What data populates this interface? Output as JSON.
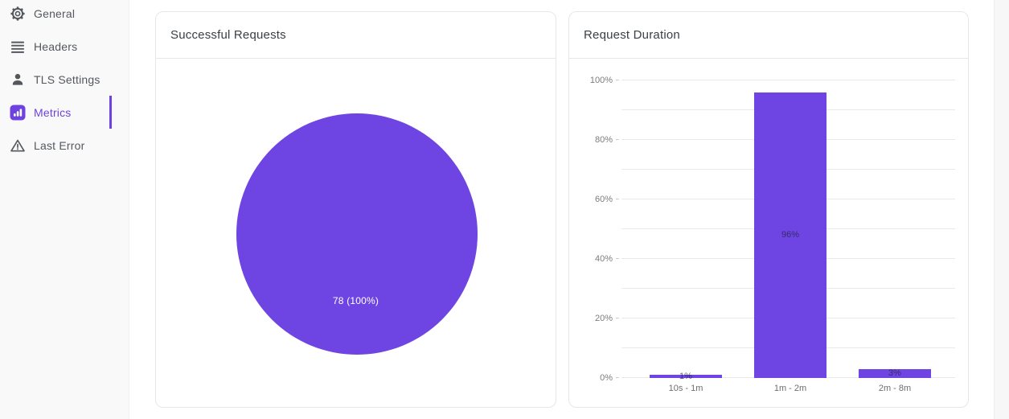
{
  "colors": {
    "accent": "#6d42e1",
    "chart_purple": "#6e45e2",
    "sidebar_bg": "#f9f9fa",
    "card_border": "#e7e7e9",
    "grid_line": "#e9e9e9"
  },
  "sidebar": {
    "items": [
      {
        "label": "General",
        "icon": "gear-icon",
        "active": false
      },
      {
        "label": "Headers",
        "icon": "list-icon",
        "active": false
      },
      {
        "label": "TLS Settings",
        "icon": "person-icon",
        "active": false
      },
      {
        "label": "Metrics",
        "icon": "bar-chart-icon",
        "active": true
      },
      {
        "label": "Last Error",
        "icon": "warning-icon",
        "active": false
      }
    ]
  },
  "chart_data": [
    {
      "type": "pie",
      "title": "Successful Requests",
      "slices": [
        {
          "label": "78 (100%)",
          "value": 78,
          "percent": 100,
          "color": "#6e45e2"
        }
      ],
      "legend": false
    },
    {
      "type": "bar",
      "title": "Request Duration",
      "categories": [
        "10s - 1m",
        "1m - 2m",
        "2m - 8m"
      ],
      "values": [
        1,
        96,
        3
      ],
      "value_labels": [
        "1%",
        "96%",
        "3%"
      ],
      "y_ticks": [
        "0%",
        "20%",
        "40%",
        "60%",
        "80%",
        "100%"
      ],
      "ylim": [
        0,
        100
      ],
      "grid_step": 10,
      "label_step": 20,
      "grid": true,
      "legend": false,
      "bar_color": "#6e45e2",
      "xlabel": "",
      "ylabel": ""
    }
  ]
}
